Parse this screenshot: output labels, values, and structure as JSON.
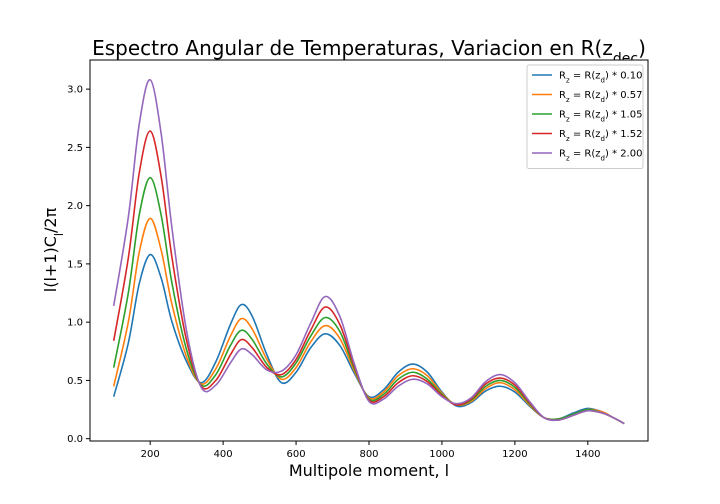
{
  "chart_data": {
    "type": "line",
    "title": "Espectro Angular de Temperaturas, Variacion en R(z_dec)",
    "xlabel": "Multipole moment, l",
    "ylabel": "l(l+1)C_l/2π",
    "xlim": [
      35,
      1565
    ],
    "ylim": [
      -0.02,
      3.25
    ],
    "xticks": [
      200,
      400,
      600,
      800,
      1000,
      1200,
      1400
    ],
    "yticks": [
      0.0,
      0.5,
      1.0,
      1.5,
      2.0,
      2.5,
      3.0
    ],
    "ytick_labels": [
      "0.0",
      "0.5",
      "1.0",
      "1.5",
      "2.0",
      "2.5",
      "3.0"
    ],
    "grid": false,
    "legend_position": "top-right",
    "series": [
      {
        "name": "R_z = R(z_d) * 0.10",
        "color": "#1f77b4",
        "points": [
          [
            100,
            0.36
          ],
          [
            140,
            0.82
          ],
          [
            170,
            1.33
          ],
          [
            200,
            1.58
          ],
          [
            230,
            1.38
          ],
          [
            260,
            1.0
          ],
          [
            300,
            0.66
          ],
          [
            340,
            0.48
          ],
          [
            380,
            0.66
          ],
          [
            420,
            0.98
          ],
          [
            450,
            1.15
          ],
          [
            480,
            1.05
          ],
          [
            520,
            0.72
          ],
          [
            560,
            0.48
          ],
          [
            600,
            0.57
          ],
          [
            640,
            0.78
          ],
          [
            680,
            0.9
          ],
          [
            720,
            0.8
          ],
          [
            760,
            0.56
          ],
          [
            800,
            0.36
          ],
          [
            840,
            0.42
          ],
          [
            880,
            0.57
          ],
          [
            920,
            0.64
          ],
          [
            960,
            0.57
          ],
          [
            1000,
            0.4
          ],
          [
            1040,
            0.28
          ],
          [
            1080,
            0.31
          ],
          [
            1120,
            0.41
          ],
          [
            1160,
            0.45
          ],
          [
            1200,
            0.4
          ],
          [
            1240,
            0.28
          ],
          [
            1280,
            0.18
          ],
          [
            1320,
            0.17
          ],
          [
            1360,
            0.22
          ],
          [
            1400,
            0.26
          ],
          [
            1440,
            0.23
          ],
          [
            1470,
            0.18
          ],
          [
            1500,
            0.13
          ]
        ]
      },
      {
        "name": "R_z = R(z_d) * 0.57",
        "color": "#ff7f0e",
        "points": [
          [
            100,
            0.45
          ],
          [
            140,
            1.0
          ],
          [
            170,
            1.6
          ],
          [
            200,
            1.89
          ],
          [
            230,
            1.62
          ],
          [
            260,
            1.15
          ],
          [
            300,
            0.7
          ],
          [
            340,
            0.47
          ],
          [
            380,
            0.6
          ],
          [
            420,
            0.88
          ],
          [
            450,
            1.03
          ],
          [
            480,
            0.94
          ],
          [
            520,
            0.68
          ],
          [
            560,
            0.51
          ],
          [
            600,
            0.61
          ],
          [
            640,
            0.83
          ],
          [
            680,
            0.97
          ],
          [
            720,
            0.86
          ],
          [
            760,
            0.58
          ],
          [
            800,
            0.35
          ],
          [
            840,
            0.4
          ],
          [
            880,
            0.54
          ],
          [
            920,
            0.6
          ],
          [
            960,
            0.54
          ],
          [
            1000,
            0.39
          ],
          [
            1040,
            0.29
          ],
          [
            1080,
            0.32
          ],
          [
            1120,
            0.43
          ],
          [
            1160,
            0.48
          ],
          [
            1200,
            0.42
          ],
          [
            1240,
            0.29
          ],
          [
            1280,
            0.18
          ],
          [
            1320,
            0.17
          ],
          [
            1360,
            0.21
          ],
          [
            1400,
            0.25
          ],
          [
            1440,
            0.23
          ],
          [
            1470,
            0.18
          ],
          [
            1500,
            0.13
          ]
        ]
      },
      {
        "name": "R_z = R(z_d) * 1.05",
        "color": "#2ca02c",
        "points": [
          [
            100,
            0.61
          ],
          [
            140,
            1.25
          ],
          [
            170,
            1.92
          ],
          [
            200,
            2.24
          ],
          [
            230,
            1.92
          ],
          [
            260,
            1.33
          ],
          [
            300,
            0.76
          ],
          [
            340,
            0.46
          ],
          [
            380,
            0.55
          ],
          [
            420,
            0.8
          ],
          [
            450,
            0.93
          ],
          [
            480,
            0.85
          ],
          [
            520,
            0.64
          ],
          [
            560,
            0.53
          ],
          [
            600,
            0.65
          ],
          [
            640,
            0.88
          ],
          [
            680,
            1.04
          ],
          [
            720,
            0.92
          ],
          [
            760,
            0.6
          ],
          [
            800,
            0.34
          ],
          [
            840,
            0.38
          ],
          [
            880,
            0.51
          ],
          [
            920,
            0.57
          ],
          [
            960,
            0.51
          ],
          [
            1000,
            0.38
          ],
          [
            1040,
            0.29
          ],
          [
            1080,
            0.33
          ],
          [
            1120,
            0.45
          ],
          [
            1160,
            0.5
          ],
          [
            1200,
            0.44
          ],
          [
            1240,
            0.3
          ],
          [
            1280,
            0.18
          ],
          [
            1320,
            0.17
          ],
          [
            1360,
            0.21
          ],
          [
            1400,
            0.25
          ],
          [
            1440,
            0.22
          ],
          [
            1470,
            0.18
          ],
          [
            1500,
            0.13
          ]
        ]
      },
      {
        "name": "R_z = R(z_d) * 1.52",
        "color": "#d62728",
        "points": [
          [
            100,
            0.84
          ],
          [
            140,
            1.55
          ],
          [
            170,
            2.28
          ],
          [
            200,
            2.64
          ],
          [
            230,
            2.25
          ],
          [
            260,
            1.55
          ],
          [
            300,
            0.84
          ],
          [
            340,
            0.45
          ],
          [
            380,
            0.5
          ],
          [
            420,
            0.72
          ],
          [
            450,
            0.85
          ],
          [
            480,
            0.78
          ],
          [
            520,
            0.61
          ],
          [
            560,
            0.55
          ],
          [
            600,
            0.68
          ],
          [
            640,
            0.93
          ],
          [
            680,
            1.13
          ],
          [
            720,
            0.98
          ],
          [
            760,
            0.62
          ],
          [
            800,
            0.33
          ],
          [
            840,
            0.36
          ],
          [
            880,
            0.48
          ],
          [
            920,
            0.54
          ],
          [
            960,
            0.49
          ],
          [
            1000,
            0.37
          ],
          [
            1040,
            0.29
          ],
          [
            1080,
            0.34
          ],
          [
            1120,
            0.47
          ],
          [
            1160,
            0.52
          ],
          [
            1200,
            0.46
          ],
          [
            1240,
            0.31
          ],
          [
            1280,
            0.18
          ],
          [
            1320,
            0.16
          ],
          [
            1360,
            0.2
          ],
          [
            1400,
            0.24
          ],
          [
            1440,
            0.22
          ],
          [
            1470,
            0.18
          ],
          [
            1500,
            0.13
          ]
        ]
      },
      {
        "name": "R_z = R(z_d) * 2.00",
        "color": "#9467bd",
        "points": [
          [
            100,
            1.14
          ],
          [
            140,
            1.9
          ],
          [
            170,
            2.7
          ],
          [
            200,
            3.08
          ],
          [
            230,
            2.62
          ],
          [
            260,
            1.8
          ],
          [
            300,
            0.92
          ],
          [
            340,
            0.44
          ],
          [
            380,
            0.46
          ],
          [
            420,
            0.65
          ],
          [
            450,
            0.77
          ],
          [
            480,
            0.72
          ],
          [
            520,
            0.59
          ],
          [
            560,
            0.58
          ],
          [
            600,
            0.72
          ],
          [
            640,
            0.99
          ],
          [
            680,
            1.22
          ],
          [
            720,
            1.05
          ],
          [
            760,
            0.64
          ],
          [
            800,
            0.32
          ],
          [
            840,
            0.34
          ],
          [
            880,
            0.45
          ],
          [
            920,
            0.51
          ],
          [
            960,
            0.47
          ],
          [
            1000,
            0.36
          ],
          [
            1040,
            0.3
          ],
          [
            1080,
            0.35
          ],
          [
            1120,
            0.49
          ],
          [
            1160,
            0.55
          ],
          [
            1200,
            0.48
          ],
          [
            1240,
            0.32
          ],
          [
            1280,
            0.18
          ],
          [
            1320,
            0.16
          ],
          [
            1360,
            0.2
          ],
          [
            1400,
            0.24
          ],
          [
            1440,
            0.22
          ],
          [
            1470,
            0.18
          ],
          [
            1500,
            0.13
          ]
        ]
      }
    ]
  }
}
